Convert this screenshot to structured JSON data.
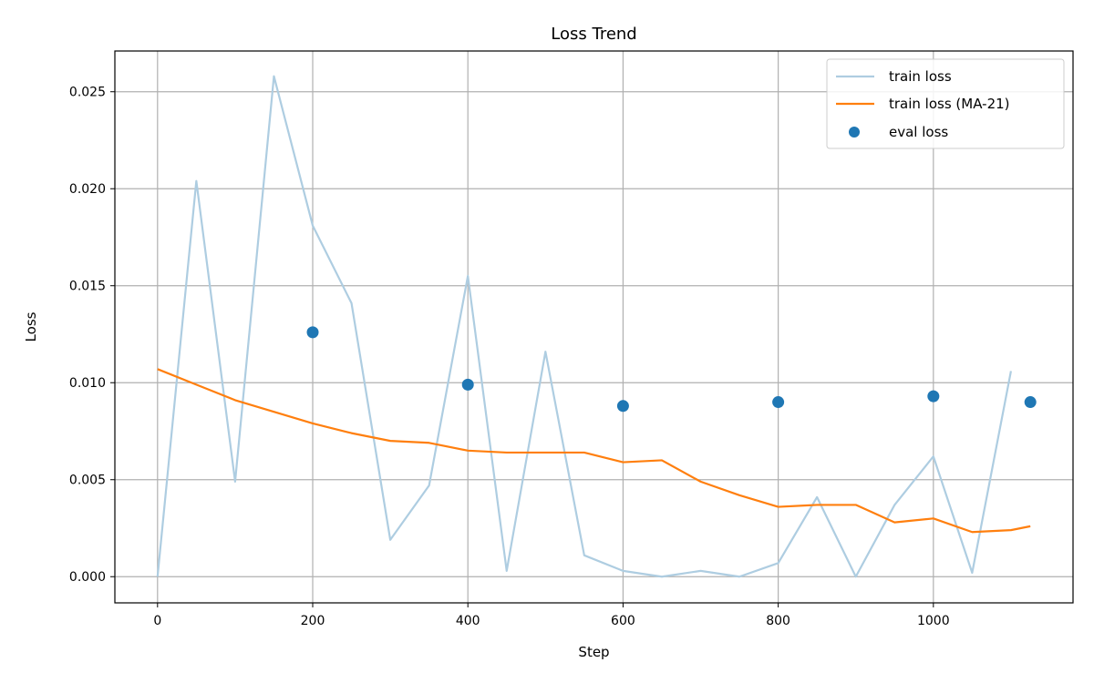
{
  "colors": {
    "train_loss": "#aecde1",
    "train_loss_ma": "#ff7f0e",
    "eval_loss": "#1f77b4",
    "grid": "#b0b0b0",
    "axes": "#000000"
  },
  "chart_data": {
    "type": "line",
    "title": "Loss Trend",
    "xlabel": "Step",
    "ylabel": "Loss",
    "xlim": [
      -55,
      1180
    ],
    "ylim": [
      -0.00135,
      0.0271
    ],
    "xticks": [
      0,
      200,
      400,
      600,
      800,
      1000
    ],
    "yticks": [
      0.0,
      0.005,
      0.01,
      0.015,
      0.02,
      0.025
    ],
    "xtick_labels": [
      "0",
      "200",
      "400",
      "600",
      "800",
      "1000"
    ],
    "ytick_labels": [
      "0.000",
      "0.005",
      "0.010",
      "0.015",
      "0.020",
      "0.025"
    ],
    "grid": true,
    "legend_position": "top-right",
    "series": [
      {
        "name": "train loss",
        "kind": "line",
        "color_key": "train_loss",
        "x": [
          0,
          50,
          100,
          150,
          200,
          250,
          300,
          350,
          400,
          450,
          500,
          550,
          600,
          650,
          700,
          750,
          800,
          850,
          900,
          950,
          1000,
          1050,
          1100
        ],
        "y": [
          0.0,
          0.0204,
          0.0049,
          0.0258,
          0.0181,
          0.0141,
          0.0019,
          0.0047,
          0.0155,
          0.0003,
          0.0116,
          0.0011,
          0.0003,
          0.0,
          0.0003,
          0.0,
          0.0007,
          0.0041,
          0.0,
          0.0037,
          0.0062,
          0.0002,
          0.0106
        ]
      },
      {
        "name": "train loss (MA-21)",
        "kind": "line",
        "color_key": "train_loss_ma",
        "x": [
          0,
          50,
          100,
          150,
          200,
          250,
          300,
          350,
          400,
          450,
          500,
          550,
          600,
          650,
          700,
          750,
          800,
          850,
          900,
          950,
          1000,
          1050,
          1100,
          1125
        ],
        "y": [
          0.0107,
          0.0099,
          0.0091,
          0.0085,
          0.0079,
          0.0074,
          0.007,
          0.0069,
          0.0065,
          0.0064,
          0.0064,
          0.0064,
          0.0059,
          0.006,
          0.0049,
          0.0042,
          0.0036,
          0.0037,
          0.0037,
          0.0028,
          0.003,
          0.0023,
          0.0024,
          0.0026
        ]
      },
      {
        "name": "eval loss",
        "kind": "scatter",
        "color_key": "eval_loss",
        "x": [
          200,
          400,
          600,
          800,
          1000,
          1125
        ],
        "y": [
          0.0126,
          0.0099,
          0.0088,
          0.009,
          0.0093,
          0.009
        ]
      }
    ]
  }
}
